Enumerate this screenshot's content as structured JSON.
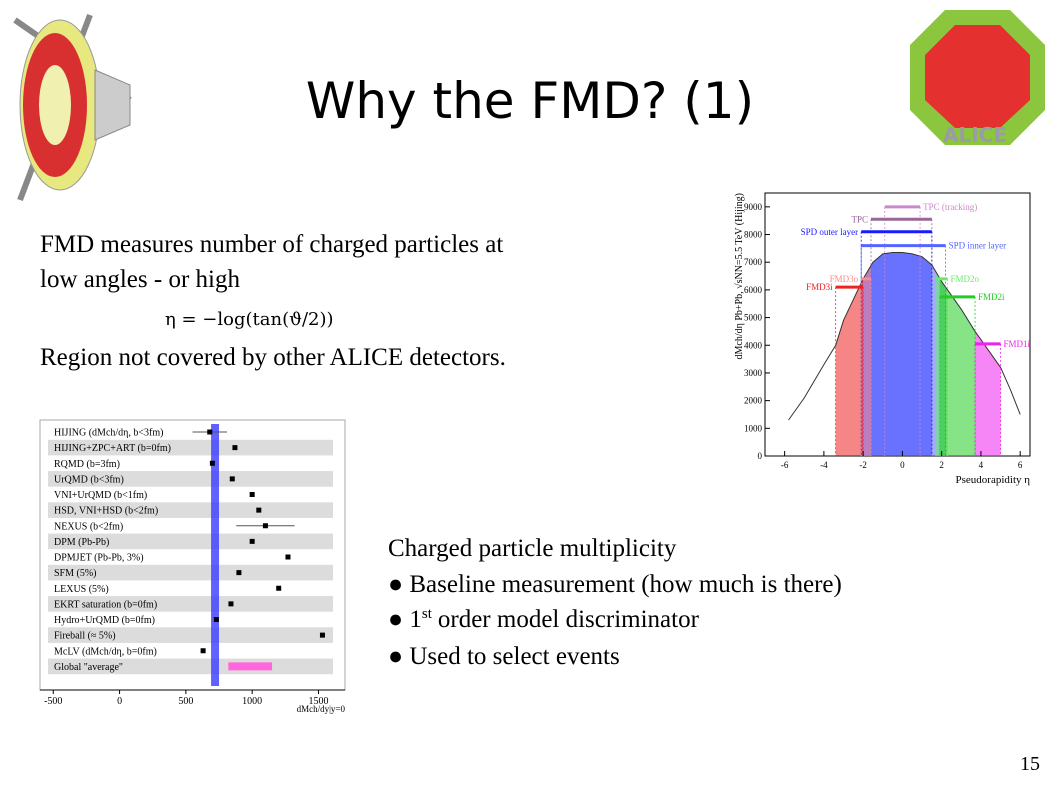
{
  "header": {
    "title": "Why the FMD? (1)",
    "logo_text": "ALICE"
  },
  "intro": {
    "lines": [
      "FMD measures number of charged particles at",
      "low angles - or high"
    ],
    "formula": "η = −log(tan(ϑ/2))",
    "note": "Region not covered by other ALICE detectors."
  },
  "bullets": {
    "heading": "Charged particle multiplicity",
    "items": [
      {
        "text": "Baseline measurement (how much is there)"
      },
      {
        "number": "1",
        "sup": "st",
        "text": "order model discriminator"
      },
      {
        "text": "Used to select events"
      }
    ]
  },
  "page_number": "15",
  "chart_data": [
    {
      "type": "dot",
      "categories": [
        "HIJING (dMch/dη, b<3fm)",
        "HIJING+ZPC+ART (b=0fm)",
        "RQMD (b=3fm)",
        "UrQMD (b<3fm)",
        "VNI+UrQMD (b<1fm)",
        "HSD, VNI+HSD (b<2fm)",
        "NEXUS (b<2fm)",
        "DPM (Pb-Pb)",
        "DPMJET (Pb-Pb, 3%)",
        "SFM (5%)",
        "LEXUS (5%)",
        "EKRT saturation (b=0fm)",
        "Hydro+UrQMD (b=0fm)",
        "Fireball (≈ 5%)",
        "McLV (dMch/dη, b=0fm)"
      ],
      "values": [
        680,
        870,
        700,
        850,
        1000,
        1050,
        1100,
        1000,
        1270,
        900,
        1200,
        840,
        730,
        1530,
        630
      ],
      "errors": [
        130,
        null,
        null,
        null,
        null,
        null,
        220,
        null,
        null,
        null,
        null,
        null,
        null,
        null,
        null
      ],
      "color": "#000000",
      "band": {
        "range": [
          690,
          750
        ],
        "color": "#3a3aff"
      },
      "average": {
        "label": "Global \"average\"",
        "range": [
          820,
          1150
        ],
        "color": "#ff66dd"
      },
      "xlim": [
        -600,
        1700
      ],
      "xticks": [
        -500,
        0,
        500,
        1000,
        1500
      ],
      "x_label": "dMch/dy|y=0"
    },
    {
      "type": "line",
      "x": [
        -5.8,
        -5,
        -4,
        -3.4,
        -3,
        -2,
        -1.5,
        -1,
        -0.5,
        0,
        0.5,
        1,
        1.5,
        2,
        3,
        3.7,
        4,
        5,
        5.5,
        6
      ],
      "values": [
        1300,
        2100,
        3300,
        4000,
        4900,
        6400,
        7000,
        7300,
        7350,
        7350,
        7300,
        7200,
        6900,
        6300,
        5300,
        4500,
        4200,
        3200,
        2400,
        1500
      ],
      "color": "#333333",
      "xlim": [
        -7,
        6.5
      ],
      "xticks": [
        -6,
        -4,
        -2,
        0,
        2,
        4,
        6
      ],
      "ylim": [
        0,
        9500
      ],
      "yticks": [
        0,
        1000,
        2000,
        3000,
        4000,
        5000,
        6000,
        7000,
        8000,
        9000
      ],
      "x_label": "Pseudorapidity η",
      "y_label": "dMch/dη Pb+Pb, √sNN=5.5 TeV (Hijing)",
      "detectors": [
        {
          "name": "TPC (tracking)",
          "range": [
            -0.9,
            0.9
          ],
          "level": 9000,
          "color": "#cc88cc",
          "filled": false
        },
        {
          "name": "TPC",
          "range": [
            -1.6,
            1.5
          ],
          "level": 8550,
          "color": "#996699",
          "filled": false
        },
        {
          "name": "SPD outer layer",
          "range": [
            -2.1,
            1.5
          ],
          "level": 8100,
          "color": "#1a1aff",
          "filled": true
        },
        {
          "name": "SPD inner layer",
          "range": [
            -2.1,
            2.2
          ],
          "level": 7600,
          "color": "#5566ff",
          "filled": true
        },
        {
          "name": "FMD3o",
          "range": [
            -2.1,
            -1.6
          ],
          "level": 6400,
          "color": "#ff8888",
          "filled": true
        },
        {
          "name": "FMD3i",
          "range": [
            -3.4,
            -2.0
          ],
          "level": 6100,
          "color": "#ee2222",
          "filled": true
        },
        {
          "name": "FMD2o",
          "range": [
            1.7,
            2.3
          ],
          "level": 6400,
          "color": "#66ee66",
          "filled": true
        },
        {
          "name": "FMD2i",
          "range": [
            1.9,
            3.7
          ],
          "level": 5750,
          "color": "#22cc22",
          "filled": true
        },
        {
          "name": "FMD1i",
          "range": [
            3.7,
            5.0
          ],
          "level": 4050,
          "color": "#ee22ee",
          "filled": true
        }
      ]
    }
  ]
}
